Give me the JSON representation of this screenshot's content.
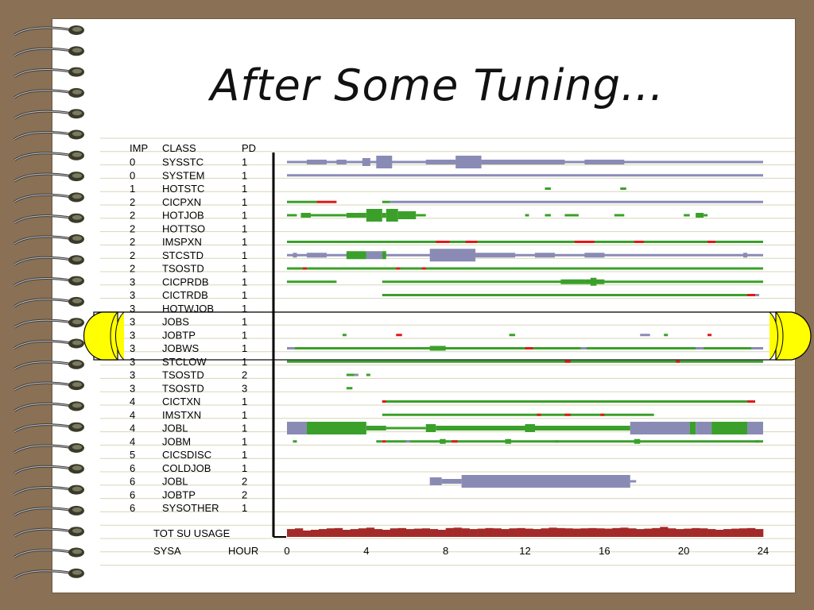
{
  "slide": {
    "title": "After Some Tuning..."
  },
  "table": {
    "headers": {
      "imp": "IMP",
      "class": "CLASS",
      "pd": "PD"
    },
    "rows": [
      {
        "imp": "0",
        "class": "SYSSTC",
        "pd": "1"
      },
      {
        "imp": "0",
        "class": "SYSTEM",
        "pd": "1"
      },
      {
        "imp": "1",
        "class": "HOTSTC",
        "pd": "1"
      },
      {
        "imp": "2",
        "class": "CICPXN",
        "pd": "1"
      },
      {
        "imp": "2",
        "class": "HOTJOB",
        "pd": "1"
      },
      {
        "imp": "2",
        "class": "HOTTSO",
        "pd": "1"
      },
      {
        "imp": "2",
        "class": "IMSPXN",
        "pd": "1"
      },
      {
        "imp": "2",
        "class": "STCSTD",
        "pd": "1"
      },
      {
        "imp": "2",
        "class": "TSOSTD",
        "pd": "1"
      },
      {
        "imp": "3",
        "class": "CICPRDB",
        "pd": "1"
      },
      {
        "imp": "3",
        "class": "CICTRDB",
        "pd": "1"
      },
      {
        "imp": "3",
        "class": "HOTWJOB",
        "pd": "1"
      },
      {
        "imp": "3",
        "class": "JOBS",
        "pd": "1"
      },
      {
        "imp": "3",
        "class": "JOBTP",
        "pd": "1"
      },
      {
        "imp": "3",
        "class": "JOBWS",
        "pd": "1"
      },
      {
        "imp": "3",
        "class": "STCLOW",
        "pd": "1"
      },
      {
        "imp": "3",
        "class": "TSOSTD",
        "pd": "2"
      },
      {
        "imp": "3",
        "class": "TSOSTD",
        "pd": "3"
      },
      {
        "imp": "4",
        "class": "CICTXN",
        "pd": "1"
      },
      {
        "imp": "4",
        "class": "IMSTXN",
        "pd": "1"
      },
      {
        "imp": "4",
        "class": "JOBL",
        "pd": "1"
      },
      {
        "imp": "4",
        "class": "JOBM",
        "pd": "1"
      },
      {
        "imp": "5",
        "class": "CICSDISC",
        "pd": "1"
      },
      {
        "imp": "6",
        "class": "COLDJOB",
        "pd": "1"
      },
      {
        "imp": "6",
        "class": "JOBL",
        "pd": "2"
      },
      {
        "imp": "6",
        "class": "JOBTP",
        "pd": "2"
      },
      {
        "imp": "6",
        "class": "SYSOTHER",
        "pd": "1"
      }
    ],
    "footer": {
      "usage_label": "TOT  SU  USAGE",
      "system_label": "SYSA",
      "hour_label": "HOUR"
    },
    "x_ticks": [
      "0",
      "4",
      "8",
      "12",
      "16",
      "20",
      "24"
    ]
  },
  "colors": {
    "met": "#3aa02a",
    "missed": "#dd1a1a",
    "idle": "#8a8bb5",
    "usage": "#a42a2a",
    "highlight": "#ffff00"
  },
  "chart_data": {
    "type": "timeline",
    "x_range": [
      0,
      24
    ],
    "x_label": "HOUR",
    "series_note": "segments: [start_hour, end_hour, color_key, thickness_level]",
    "rows": [
      {
        "class": "SYSSTC",
        "segments": [
          [
            0,
            24,
            "idle",
            1
          ],
          [
            1,
            2,
            "idle",
            2
          ],
          [
            2.5,
            3,
            "idle",
            2
          ],
          [
            3.8,
            4.2,
            "idle",
            3
          ],
          [
            4.5,
            5.3,
            "idle",
            4
          ],
          [
            7,
            8.5,
            "idle",
            2
          ],
          [
            8.5,
            9.8,
            "idle",
            4
          ],
          [
            9.8,
            11.5,
            "idle",
            2
          ],
          [
            11.5,
            14,
            "idle",
            2
          ],
          [
            15,
            17,
            "idle",
            2
          ]
        ]
      },
      {
        "class": "SYSTEM",
        "segments": [
          [
            0,
            24,
            "idle",
            1
          ]
        ]
      },
      {
        "class": "HOTSTC",
        "segments": [
          [
            13,
            13.3,
            "met",
            1
          ],
          [
            16.8,
            17.1,
            "met",
            1
          ]
        ]
      },
      {
        "class": "CICPXN",
        "segments": [
          [
            0,
            1.5,
            "met",
            1
          ],
          [
            1.5,
            2.5,
            "missed",
            1
          ],
          [
            4.8,
            5.2,
            "met",
            1
          ],
          [
            5.2,
            24,
            "idle",
            1
          ]
        ]
      },
      {
        "class": "HOTJOB",
        "segments": [
          [
            0,
            0.5,
            "met",
            1
          ],
          [
            0.7,
            1.2,
            "met",
            2
          ],
          [
            1.2,
            3,
            "met",
            1
          ],
          [
            3,
            4,
            "met",
            2
          ],
          [
            4,
            4.8,
            "met",
            4
          ],
          [
            4.8,
            5,
            "met",
            2
          ],
          [
            5,
            5.6,
            "met",
            4
          ],
          [
            5.6,
            6.5,
            "met",
            3
          ],
          [
            6.5,
            7,
            "met",
            1
          ],
          [
            12,
            12.2,
            "met",
            1
          ],
          [
            13,
            13.3,
            "met",
            1
          ],
          [
            14,
            14.7,
            "met",
            1
          ],
          [
            16.5,
            17,
            "met",
            1
          ],
          [
            20,
            20.3,
            "met",
            1
          ],
          [
            20.6,
            21,
            "met",
            2
          ],
          [
            21,
            21.2,
            "met",
            1
          ]
        ]
      },
      {
        "class": "HOTTSO",
        "segments": []
      },
      {
        "class": "IMSPXN",
        "segments": [
          [
            0,
            24,
            "met",
            1
          ],
          [
            7.5,
            8.2,
            "missed",
            1
          ],
          [
            9,
            9.6,
            "missed",
            1
          ],
          [
            14.5,
            15.5,
            "missed",
            1
          ],
          [
            17.5,
            18,
            "missed",
            1
          ],
          [
            21.2,
            21.6,
            "missed",
            1
          ]
        ]
      },
      {
        "class": "STCSTD",
        "segments": [
          [
            0,
            24,
            "idle",
            1
          ],
          [
            0.3,
            0.5,
            "idle",
            2
          ],
          [
            1,
            2,
            "idle",
            2
          ],
          [
            3,
            3.8,
            "idle",
            2
          ],
          [
            3,
            4,
            "met",
            3
          ],
          [
            4,
            4.8,
            "idle",
            3
          ],
          [
            4.8,
            5,
            "met",
            3
          ],
          [
            7.2,
            9.5,
            "idle",
            4
          ],
          [
            9.5,
            11.5,
            "idle",
            2
          ],
          [
            12.5,
            13.5,
            "idle",
            2
          ],
          [
            15,
            16,
            "idle",
            2
          ],
          [
            23,
            23.2,
            "idle",
            2
          ]
        ]
      },
      {
        "class": "TSOSTD",
        "segments": [
          [
            0,
            24,
            "met",
            1
          ],
          [
            0.8,
            1,
            "missed",
            1
          ],
          [
            5.5,
            5.7,
            "missed",
            1
          ],
          [
            6.8,
            7,
            "missed",
            1
          ]
        ]
      },
      {
        "class": "CICPRDB",
        "segments": [
          [
            0,
            2.5,
            "met",
            1
          ],
          [
            4.8,
            24,
            "met",
            1
          ],
          [
            13.8,
            15,
            "met",
            2
          ],
          [
            15,
            16,
            "met",
            2
          ],
          [
            15.3,
            15.6,
            "met",
            3
          ]
        ]
      },
      {
        "class": "CICTRDB",
        "segments": [
          [
            4.8,
            23.6,
            "met",
            1
          ],
          [
            23.2,
            23.6,
            "missed",
            1
          ],
          [
            23.6,
            23.8,
            "idle",
            1
          ]
        ]
      },
      {
        "class": "HOTWJOB",
        "segments": []
      },
      {
        "class": "JOBS",
        "segments": []
      },
      {
        "class": "JOBTP",
        "segments": [
          [
            2.8,
            3,
            "met",
            1
          ],
          [
            5.5,
            5.8,
            "missed",
            1
          ],
          [
            11.2,
            11.5,
            "met",
            1
          ],
          [
            17.8,
            18.3,
            "idle",
            1
          ],
          [
            19,
            19.2,
            "met",
            1
          ],
          [
            21.2,
            21.4,
            "missed",
            1
          ]
        ]
      },
      {
        "class": "JOBWS",
        "segments": [
          [
            0,
            24,
            "met",
            1
          ],
          [
            0,
            0.4,
            "idle",
            1
          ],
          [
            7.2,
            8,
            "met",
            2
          ],
          [
            12,
            12.4,
            "missed",
            1
          ],
          [
            14.8,
            15.1,
            "idle",
            1
          ],
          [
            20.6,
            21,
            "idle",
            1
          ],
          [
            23.4,
            24,
            "idle",
            1
          ]
        ]
      },
      {
        "class": "STCLOW",
        "segments": [
          [
            0,
            24,
            "met",
            1
          ],
          [
            14,
            14.3,
            "missed",
            1
          ],
          [
            19.6,
            19.8,
            "missed",
            1
          ]
        ]
      },
      {
        "class": "TSOSTD",
        "segments": [
          [
            3,
            3.4,
            "met",
            1
          ],
          [
            3.4,
            3.6,
            "idle",
            1
          ],
          [
            4,
            4.2,
            "met",
            1
          ]
        ]
      },
      {
        "class": "TSOSTD",
        "segments": [
          [
            3,
            3.3,
            "met",
            1
          ]
        ]
      },
      {
        "class": "CICTXN",
        "segments": [
          [
            4.8,
            23.2,
            "met",
            1
          ],
          [
            4.8,
            5,
            "missed",
            1
          ],
          [
            23.2,
            23.6,
            "missed",
            1
          ]
        ]
      },
      {
        "class": "IMSTXN",
        "segments": [
          [
            4.8,
            18.5,
            "met",
            1
          ],
          [
            12.6,
            12.8,
            "missed",
            1
          ],
          [
            14,
            14.3,
            "missed",
            1
          ],
          [
            15.8,
            16,
            "missed",
            1
          ]
        ]
      },
      {
        "class": "JOBL",
        "segments": [
          [
            0,
            1,
            "idle",
            4
          ],
          [
            1,
            4,
            "met",
            4
          ],
          [
            4,
            5,
            "met",
            2
          ],
          [
            5,
            7,
            "met",
            1
          ],
          [
            7,
            7.5,
            "met",
            3
          ],
          [
            7.5,
            12,
            "met",
            2
          ],
          [
            12,
            12.5,
            "met",
            3
          ],
          [
            12.5,
            17.3,
            "met",
            2
          ],
          [
            17.3,
            20.3,
            "idle",
            4
          ],
          [
            20.3,
            20.6,
            "met",
            4
          ],
          [
            20.6,
            21.4,
            "idle",
            4
          ],
          [
            21.4,
            23.2,
            "met",
            4
          ],
          [
            23.2,
            24,
            "idle",
            4
          ]
        ]
      },
      {
        "class": "JOBM",
        "segments": [
          [
            0.3,
            0.5,
            "met",
            1
          ],
          [
            4.5,
            4.8,
            "met",
            1
          ],
          [
            4.8,
            5,
            "missed",
            1
          ],
          [
            5,
            24,
            "met",
            1
          ],
          [
            6,
            6.2,
            "idle",
            1
          ],
          [
            7.7,
            8,
            "met",
            2
          ],
          [
            8.3,
            8.6,
            "missed",
            1
          ],
          [
            11,
            11.3,
            "met",
            2
          ],
          [
            13.5,
            13.7,
            "met",
            1
          ],
          [
            17.5,
            17.8,
            "met",
            2
          ],
          [
            23.6,
            23.8,
            "met",
            1
          ]
        ]
      },
      {
        "class": "CICSDISC",
        "segments": []
      },
      {
        "class": "COLDJOB",
        "segments": []
      },
      {
        "class": "JOBL",
        "segments": [
          [
            7.2,
            7.8,
            "idle",
            3
          ],
          [
            7.8,
            8.8,
            "idle",
            2
          ],
          [
            8.8,
            17.3,
            "idle",
            4
          ],
          [
            17.3,
            17.6,
            "idle",
            1
          ]
        ]
      },
      {
        "class": "JOBTP",
        "segments": []
      },
      {
        "class": "SYSOTHER",
        "segments": []
      }
    ],
    "usage": {
      "label": "TOT  SU  USAGE",
      "values": [
        0.55,
        0.6,
        0.45,
        0.5,
        0.55,
        0.6,
        0.62,
        0.5,
        0.55,
        0.6,
        0.65,
        0.55,
        0.5,
        0.6,
        0.62,
        0.55,
        0.58,
        0.6,
        0.55,
        0.5,
        0.62,
        0.65,
        0.6,
        0.55,
        0.58,
        0.62,
        0.6,
        0.55,
        0.6,
        0.62,
        0.58,
        0.55,
        0.6,
        0.65,
        0.62,
        0.6,
        0.58,
        0.6,
        0.62,
        0.6,
        0.58,
        0.62,
        0.65,
        0.6,
        0.55,
        0.58,
        0.62,
        0.7,
        0.6,
        0.55,
        0.58,
        0.62,
        0.6,
        0.55,
        0.5,
        0.55,
        0.58,
        0.6,
        0.62,
        0.55
      ]
    }
  }
}
